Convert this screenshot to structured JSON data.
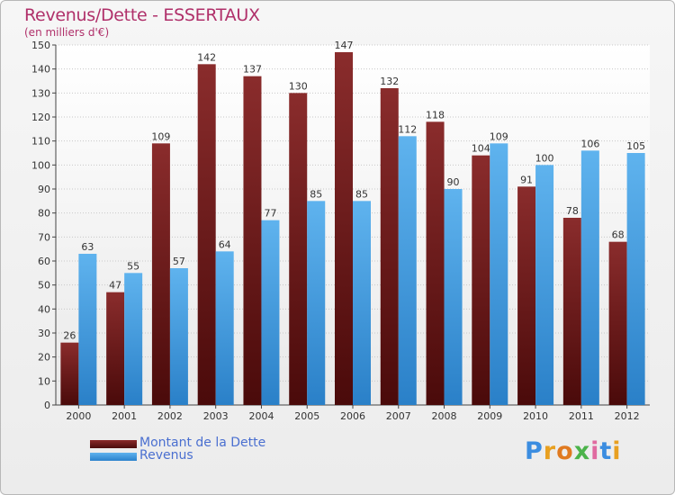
{
  "title": "Revenus/Dette - ESSERTAUX",
  "subtitle": "(en milliers d'€)",
  "logo": {
    "text": "Proxiti",
    "letters": [
      "P",
      "r",
      "o",
      "x",
      "i",
      "t",
      "i"
    ]
  },
  "colors": {
    "dette": "#7a1e1e",
    "revenus": "#3f9be0",
    "axis_text": "#333333",
    "grid": "#c8c8c8"
  },
  "chart_data": {
    "type": "bar",
    "categories": [
      "2000",
      "2001",
      "2002",
      "2003",
      "2004",
      "2005",
      "2006",
      "2007",
      "2008",
      "2009",
      "2010",
      "2011",
      "2012"
    ],
    "series": [
      {
        "name": "Montant de la Dette",
        "values": [
          26,
          47,
          109,
          142,
          137,
          130,
          147,
          132,
          118,
          104,
          91,
          78,
          68
        ]
      },
      {
        "name": "Revenus",
        "values": [
          63,
          55,
          57,
          64,
          77,
          85,
          85,
          112,
          90,
          109,
          100,
          106,
          105
        ]
      }
    ],
    "ylim": [
      0,
      150
    ],
    "yticks": [
      0,
      10,
      20,
      30,
      40,
      50,
      60,
      70,
      80,
      90,
      100,
      110,
      120,
      130,
      140,
      150
    ],
    "grid": true,
    "legend_position": "bottom-left"
  }
}
